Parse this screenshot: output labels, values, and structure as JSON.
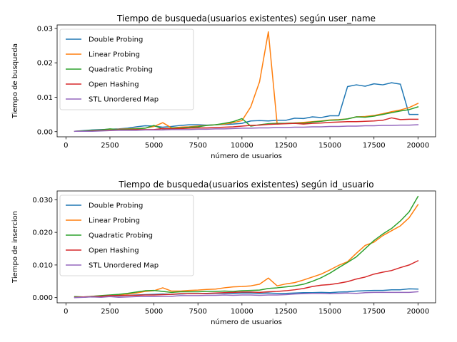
{
  "chart_data": [
    {
      "type": "line",
      "title": "Tiempo de busqueda(usuarios existentes) según user_name",
      "xlabel": "número de usuarios",
      "ylabel": "Tiempo de busqueda",
      "xlim": [
        -500,
        21000
      ],
      "ylim": [
        -0.0015,
        0.031
      ],
      "xticks": [
        0,
        2500,
        5000,
        7500,
        10000,
        12500,
        15000,
        17500,
        20000
      ],
      "xtick_labels": [
        "0",
        "2500",
        "5000",
        "7500",
        "10000",
        "12500",
        "15000",
        "17500",
        "20000"
      ],
      "yticks": [
        0.0,
        0.01,
        0.02,
        0.03
      ],
      "ytick_labels": [
        "0.00",
        "0.01",
        "0.02",
        "0.03"
      ],
      "grid": false,
      "legend_position": "upper-left",
      "x": [
        500,
        1000,
        1500,
        2000,
        2500,
        3000,
        3500,
        4000,
        4500,
        5000,
        5500,
        6000,
        6500,
        7000,
        7500,
        8000,
        8500,
        9000,
        9500,
        10000,
        10500,
        11000,
        11500,
        12000,
        12500,
        13000,
        13500,
        14000,
        14500,
        15000,
        15500,
        16000,
        16500,
        17000,
        17500,
        18000,
        18500,
        19000,
        19500,
        20000
      ],
      "series": [
        {
          "name": "Double Probing",
          "color": "#1f77b4",
          "values": [
            0.0001,
            0.0003,
            0.0005,
            0.0006,
            0.0007,
            0.0008,
            0.001,
            0.0014,
            0.0017,
            0.0016,
            0.0013,
            0.0015,
            0.0018,
            0.002,
            0.002,
            0.0019,
            0.002,
            0.0021,
            0.0022,
            0.0024,
            0.0031,
            0.0032,
            0.0031,
            0.0033,
            0.0033,
            0.0039,
            0.0038,
            0.0043,
            0.0041,
            0.0046,
            0.0046,
            0.0131,
            0.0136,
            0.0132,
            0.0139,
            0.0136,
            0.0142,
            0.0138,
            0.005,
            0.005
          ]
        },
        {
          "name": "Linear Probing",
          "color": "#ff7f0e",
          "values": [
            0.0001,
            0.0002,
            0.0003,
            0.0004,
            0.0006,
            0.0007,
            0.0008,
            0.0009,
            0.001,
            0.0015,
            0.0026,
            0.0011,
            0.0013,
            0.0014,
            0.0016,
            0.0018,
            0.002,
            0.0022,
            0.0026,
            0.0032,
            0.0072,
            0.0145,
            0.029,
            0.0022,
            0.0024,
            0.0025,
            0.0027,
            0.0029,
            0.0031,
            0.0034,
            0.0035,
            0.0037,
            0.0043,
            0.0044,
            0.0047,
            0.0052,
            0.0058,
            0.0063,
            0.007,
            0.0082
          ]
        },
        {
          "name": "Quadratic Probing",
          "color": "#2ca02c",
          "values": [
            0.0001,
            0.0002,
            0.0004,
            0.0005,
            0.0008,
            0.0006,
            0.0007,
            0.0008,
            0.001,
            0.0018,
            0.0008,
            0.001,
            0.0011,
            0.0013,
            0.0014,
            0.0018,
            0.002,
            0.0024,
            0.0029,
            0.0038,
            0.0016,
            0.002,
            0.0023,
            0.0024,
            0.0024,
            0.0025,
            0.0024,
            0.0028,
            0.003,
            0.0033,
            0.0034,
            0.0037,
            0.0043,
            0.0042,
            0.0045,
            0.005,
            0.0055,
            0.006,
            0.0064,
            0.0072
          ]
        },
        {
          "name": "Open Hashing",
          "color": "#d62728",
          "values": [
            0.0001,
            0.0001,
            0.0002,
            0.0003,
            0.0004,
            0.0005,
            0.0005,
            0.0006,
            0.0006,
            0.0006,
            0.0009,
            0.0008,
            0.0009,
            0.001,
            0.0011,
            0.0011,
            0.0012,
            0.0013,
            0.0014,
            0.0016,
            0.0018,
            0.0019,
            0.0021,
            0.0022,
            0.0023,
            0.0024,
            0.0022,
            0.0024,
            0.0025,
            0.0027,
            0.0028,
            0.0029,
            0.0029,
            0.003,
            0.0031,
            0.0033,
            0.004,
            0.0035,
            0.0036,
            0.0036
          ]
        },
        {
          "name": "STL Unordered Map",
          "color": "#9467bd",
          "values": [
            0.0001,
            0.0001,
            0.0001,
            0.0002,
            0.0003,
            0.0004,
            0.0004,
            0.0004,
            0.0005,
            0.0005,
            0.0005,
            0.0006,
            0.0006,
            0.0006,
            0.0007,
            0.0007,
            0.0008,
            0.0008,
            0.0009,
            0.001,
            0.001,
            0.0011,
            0.0011,
            0.0012,
            0.0012,
            0.0013,
            0.0013,
            0.0014,
            0.0014,
            0.0015,
            0.0015,
            0.0016,
            0.0016,
            0.0017,
            0.0017,
            0.0018,
            0.0018,
            0.0019,
            0.0019,
            0.002
          ]
        }
      ]
    },
    {
      "type": "line",
      "title": "Tiempo de busqueda(usuarios existentes) según id_usuario",
      "xlabel": "número de usuarios",
      "ylabel": "Tiempo de insercion",
      "xlim": [
        -500,
        21000
      ],
      "ylim": [
        -0.0016,
        0.0327
      ],
      "xticks": [
        0,
        2500,
        5000,
        7500,
        10000,
        12500,
        15000,
        17500,
        20000
      ],
      "xtick_labels": [
        "0",
        "2500",
        "5000",
        "7500",
        "10000",
        "12500",
        "15000",
        "17500",
        "20000"
      ],
      "yticks": [
        0.0,
        0.01,
        0.02,
        0.03
      ],
      "ytick_labels": [
        "0.000",
        "0.010",
        "0.020",
        "0.030"
      ],
      "grid": false,
      "legend_position": "upper-left",
      "x": [
        500,
        1000,
        1500,
        2000,
        2500,
        3000,
        3500,
        4000,
        4500,
        5000,
        5500,
        6000,
        6500,
        7000,
        7500,
        8000,
        8500,
        9000,
        9500,
        10000,
        10500,
        11000,
        11500,
        12000,
        12500,
        13000,
        13500,
        14000,
        14500,
        15000,
        15500,
        16000,
        16500,
        17000,
        17500,
        18000,
        18500,
        19000,
        19500,
        20000
      ],
      "series": [
        {
          "name": "Double Probing",
          "color": "#1f77b4",
          "values": [
            0.0002,
            0.0001,
            0.0003,
            0.0004,
            0.0006,
            0.0005,
            0.0007,
            0.0008,
            0.0009,
            0.001,
            0.0011,
            0.001,
            0.0011,
            0.0012,
            0.0012,
            0.0012,
            0.0013,
            0.0013,
            0.0013,
            0.0014,
            0.0014,
            0.0013,
            0.0014,
            0.0013,
            0.0013,
            0.0014,
            0.0015,
            0.0015,
            0.0016,
            0.0015,
            0.0017,
            0.0018,
            0.002,
            0.0021,
            0.0022,
            0.0022,
            0.0024,
            0.0024,
            0.0027,
            0.0026
          ]
        },
        {
          "name": "Linear Probing",
          "color": "#ff7f0e",
          "values": [
            0.0002,
            0.0001,
            0.0004,
            0.0005,
            0.0007,
            0.0008,
            0.0011,
            0.0014,
            0.0019,
            0.0021,
            0.003,
            0.002,
            0.002,
            0.0022,
            0.0023,
            0.0025,
            0.0026,
            0.003,
            0.0033,
            0.0034,
            0.0036,
            0.0041,
            0.006,
            0.0036,
            0.0042,
            0.0046,
            0.0054,
            0.0063,
            0.0072,
            0.0085,
            0.0099,
            0.011,
            0.0136,
            0.016,
            0.017,
            0.019,
            0.0205,
            0.022,
            0.0245,
            0.0285
          ]
        },
        {
          "name": "Quadratic Probing",
          "color": "#2ca02c",
          "values": [
            0.0003,
            0.0002,
            0.0004,
            0.0006,
            0.0008,
            0.001,
            0.0013,
            0.0017,
            0.0021,
            0.0022,
            0.0019,
            0.0016,
            0.0018,
            0.0018,
            0.0018,
            0.0019,
            0.0019,
            0.002,
            0.0019,
            0.0021,
            0.0022,
            0.0023,
            0.0028,
            0.003,
            0.0033,
            0.0036,
            0.0041,
            0.005,
            0.0061,
            0.0075,
            0.0092,
            0.0108,
            0.0125,
            0.015,
            0.0175,
            0.0195,
            0.0212,
            0.0235,
            0.0263,
            0.031
          ]
        },
        {
          "name": "Open Hashing",
          "color": "#d62728",
          "values": [
            0.0001,
            0.0002,
            0.0003,
            0.0004,
            0.0006,
            0.0006,
            0.0007,
            0.0007,
            0.0008,
            0.0008,
            0.0009,
            0.001,
            0.0012,
            0.0012,
            0.0012,
            0.0013,
            0.0014,
            0.0015,
            0.0016,
            0.0017,
            0.0017,
            0.0016,
            0.0018,
            0.0019,
            0.0021,
            0.0024,
            0.0028,
            0.0034,
            0.0038,
            0.004,
            0.0044,
            0.0049,
            0.0057,
            0.0063,
            0.0072,
            0.0078,
            0.0083,
            0.0092,
            0.01,
            0.0113
          ]
        },
        {
          "name": "STL Unordered Map",
          "color": "#9467bd",
          "values": [
            0.0,
            0.0001,
            0.0002,
            0.0001,
            0.0003,
            0.0001,
            0.0002,
            0.0003,
            0.0003,
            0.0003,
            0.0004,
            0.0004,
            0.0006,
            0.0006,
            0.0006,
            0.0007,
            0.0007,
            0.0008,
            0.0007,
            0.0008,
            0.0008,
            0.0007,
            0.0008,
            0.0008,
            0.0009,
            0.0011,
            0.0012,
            0.0013,
            0.0013,
            0.0012,
            0.0013,
            0.0014,
            0.0013,
            0.0015,
            0.0016,
            0.0016,
            0.0016,
            0.0016,
            0.0016,
            0.0018
          ]
        }
      ]
    }
  ]
}
